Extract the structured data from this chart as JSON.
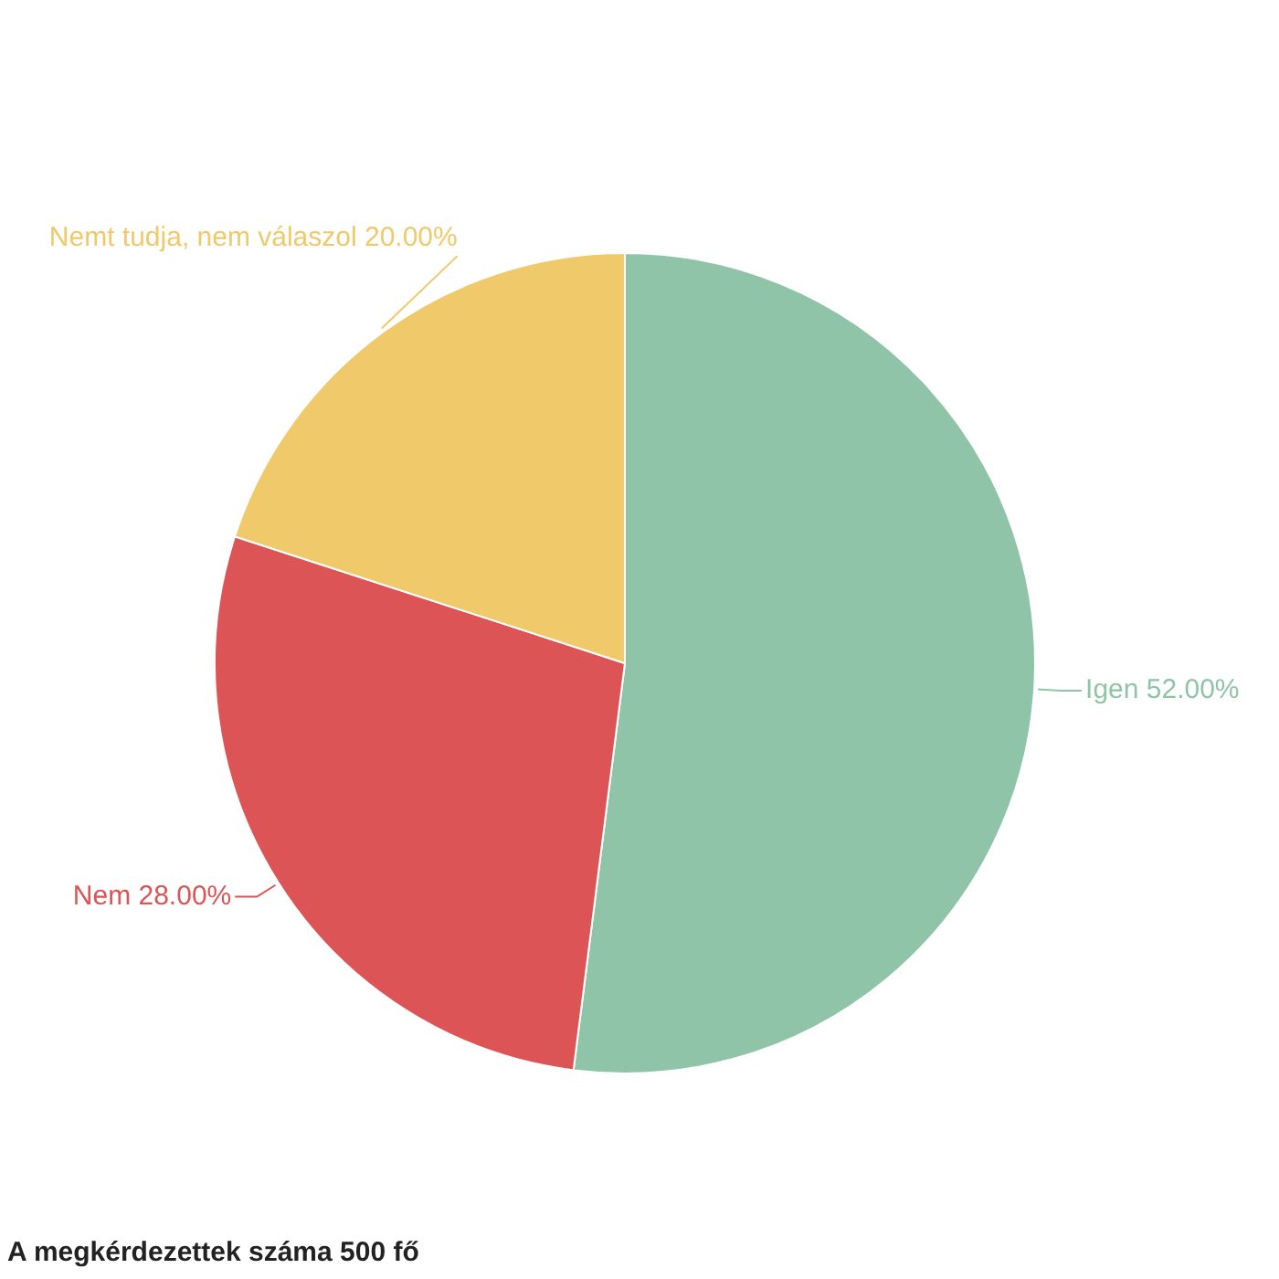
{
  "chart_data": {
    "type": "pie",
    "categories": [
      "Igen",
      "Nem",
      "Nemt tudja, nem válaszol"
    ],
    "values": [
      52,
      28,
      20
    ],
    "colors": [
      "#8fc4a8",
      "#dc5455",
      "#efc96a"
    ],
    "value_labels": [
      "52.00%",
      "28.00%",
      "20.00%"
    ],
    "annotations": [
      "A megkérdezettek száma 500 fő"
    ],
    "legend": false
  }
}
